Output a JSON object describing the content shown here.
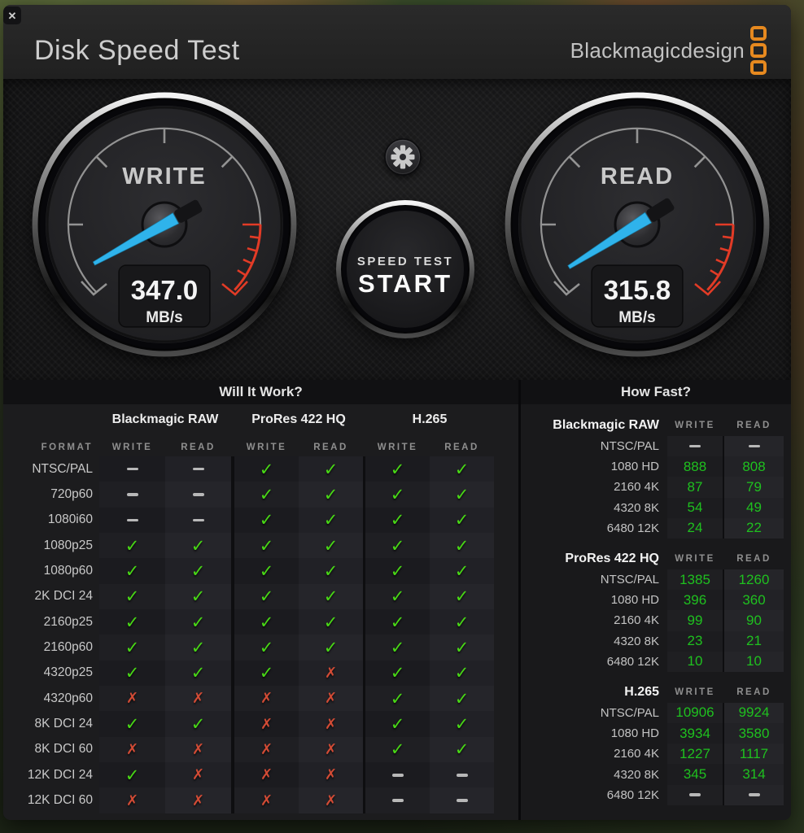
{
  "window": {
    "title": "Disk Speed Test",
    "close_glyph": "✕"
  },
  "brand": {
    "name": "Blackmagicdesign",
    "accent_orange": "#E6891F"
  },
  "gauges": {
    "write": {
      "label": "WRITE",
      "value": "347.0",
      "unit": "MB/s",
      "needle_deg": 151
    },
    "read": {
      "label": "READ",
      "value": "315.8",
      "unit": "MB/s",
      "needle_deg": 148
    }
  },
  "start_button": {
    "line1": "SPEED TEST",
    "line2": "START"
  },
  "colors": {
    "needle_cyan": "#2FB3EB",
    "check_green": "#48D815",
    "cross_red": "#D24B35",
    "value_green": "#1FC11F",
    "gauge_red_zone": "#E23B26"
  },
  "will_it_work": {
    "title": "Will It Work?",
    "codecs": [
      "Blackmagic RAW",
      "ProRes 422 HQ",
      "H.265"
    ],
    "col_headers": {
      "format": "FORMAT",
      "write": "WRITE",
      "read": "READ"
    },
    "rows": [
      {
        "label": "NTSC/PAL",
        "marks": [
          "dash",
          "dash",
          "check",
          "check",
          "check",
          "check"
        ]
      },
      {
        "label": "720p60",
        "marks": [
          "dash",
          "dash",
          "check",
          "check",
          "check",
          "check"
        ]
      },
      {
        "label": "1080i60",
        "marks": [
          "dash",
          "dash",
          "check",
          "check",
          "check",
          "check"
        ]
      },
      {
        "label": "1080p25",
        "marks": [
          "check",
          "check",
          "check",
          "check",
          "check",
          "check"
        ]
      },
      {
        "label": "1080p60",
        "marks": [
          "check",
          "check",
          "check",
          "check",
          "check",
          "check"
        ]
      },
      {
        "label": "2K DCI 24",
        "marks": [
          "check",
          "check",
          "check",
          "check",
          "check",
          "check"
        ]
      },
      {
        "label": "2160p25",
        "marks": [
          "check",
          "check",
          "check",
          "check",
          "check",
          "check"
        ]
      },
      {
        "label": "2160p60",
        "marks": [
          "check",
          "check",
          "check",
          "check",
          "check",
          "check"
        ]
      },
      {
        "label": "4320p25",
        "marks": [
          "check",
          "check",
          "check",
          "cross",
          "check",
          "check"
        ]
      },
      {
        "label": "4320p60",
        "marks": [
          "cross",
          "cross",
          "cross",
          "cross",
          "check",
          "check"
        ]
      },
      {
        "label": "8K DCI 24",
        "marks": [
          "check",
          "check",
          "cross",
          "cross",
          "check",
          "check"
        ]
      },
      {
        "label": "8K DCI 60",
        "marks": [
          "cross",
          "cross",
          "cross",
          "cross",
          "check",
          "check"
        ]
      },
      {
        "label": "12K DCI 24",
        "marks": [
          "check",
          "cross",
          "cross",
          "cross",
          "dash",
          "dash"
        ]
      },
      {
        "label": "12K DCI 60",
        "marks": [
          "cross",
          "cross",
          "cross",
          "cross",
          "dash",
          "dash"
        ]
      }
    ]
  },
  "how_fast": {
    "title": "How Fast?",
    "col_headers": {
      "write": "WRITE",
      "read": "READ"
    },
    "groups": [
      {
        "codec": "Blackmagic RAW",
        "rows": [
          [
            "NTSC/PAL",
            "–",
            "–"
          ],
          [
            "1080 HD",
            "888",
            "808"
          ],
          [
            "2160 4K",
            "87",
            "79"
          ],
          [
            "4320 8K",
            "54",
            "49"
          ],
          [
            "6480 12K",
            "24",
            "22"
          ]
        ]
      },
      {
        "codec": "ProRes 422 HQ",
        "rows": [
          [
            "NTSC/PAL",
            "1385",
            "1260"
          ],
          [
            "1080 HD",
            "396",
            "360"
          ],
          [
            "2160 4K",
            "99",
            "90"
          ],
          [
            "4320 8K",
            "23",
            "21"
          ],
          [
            "6480 12K",
            "10",
            "10"
          ]
        ]
      },
      {
        "codec": "H.265",
        "rows": [
          [
            "NTSC/PAL",
            "10906",
            "9924"
          ],
          [
            "1080 HD",
            "3934",
            "3580"
          ],
          [
            "2160 4K",
            "1227",
            "1117"
          ],
          [
            "4320 8K",
            "345",
            "314"
          ],
          [
            "6480 12K",
            "–",
            "–"
          ]
        ]
      }
    ]
  }
}
